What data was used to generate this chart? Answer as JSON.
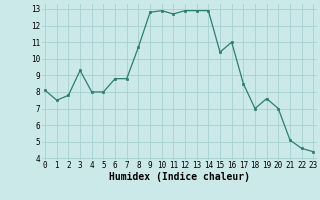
{
  "x": [
    0,
    1,
    2,
    3,
    4,
    5,
    6,
    7,
    8,
    9,
    10,
    11,
    12,
    13,
    14,
    15,
    16,
    17,
    18,
    19,
    20,
    21,
    22,
    23
  ],
  "y": [
    8.1,
    7.5,
    7.8,
    9.3,
    8.0,
    8.0,
    8.8,
    8.8,
    10.7,
    12.8,
    12.9,
    12.7,
    12.9,
    12.9,
    12.9,
    10.4,
    11.0,
    8.5,
    7.0,
    7.6,
    7.0,
    5.1,
    4.6,
    4.4
  ],
  "xlabel": "Humidex (Indice chaleur)",
  "ylim": [
    4,
    13
  ],
  "xlim": [
    -0.3,
    23.3
  ],
  "yticks": [
    4,
    5,
    6,
    7,
    8,
    9,
    10,
    11,
    12,
    13
  ],
  "xticks": [
    0,
    1,
    2,
    3,
    4,
    5,
    6,
    7,
    8,
    9,
    10,
    11,
    12,
    13,
    14,
    15,
    16,
    17,
    18,
    19,
    20,
    21,
    22,
    23
  ],
  "line_color": "#2d7d6f",
  "marker_color": "#2d7d6f",
  "bg_color": "#cce9e9",
  "grid_color": "#a8d0d0",
  "tick_label_fontsize": 5.5,
  "xlabel_fontsize": 7.0
}
